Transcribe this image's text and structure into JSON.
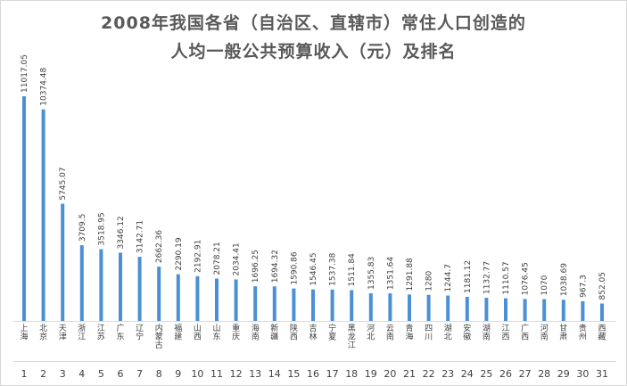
{
  "chart_data": {
    "type": "bar",
    "title_lines": [
      "2008年我国各省（自治区、直辖市）常住人口创造的",
      "人均一般公共预算收入（元）及排名"
    ],
    "categories": [
      "上海",
      "北京",
      "天津",
      "浙江",
      "江苏",
      "广东",
      "辽宁",
      "内蒙古",
      "福建",
      "山西",
      "山东",
      "重庆",
      "海南",
      "新疆",
      "陕西",
      "吉林",
      "宁夏",
      "黑龙江",
      "河北",
      "云南",
      "青海",
      "四川",
      "湖北",
      "安徽",
      "湖南",
      "江西",
      "广西",
      "河南",
      "甘肃",
      "贵州",
      "西藏"
    ],
    "ranks": [
      "1",
      "2",
      "3",
      "4",
      "5",
      "6",
      "7",
      "8",
      "9",
      "10",
      "11",
      "12",
      "13",
      "14",
      "15",
      "16",
      "17",
      "18",
      "19",
      "20",
      "21",
      "22",
      "23",
      "24",
      "25",
      "26",
      "27",
      "28",
      "29",
      "30",
      "31"
    ],
    "values": [
      11017.05,
      10374.48,
      5745.07,
      3709.5,
      3518.95,
      3346.12,
      3142.71,
      2662.36,
      2290.19,
      2192.91,
      2078.21,
      2034.41,
      1696.25,
      1694.32,
      1590.86,
      1546.45,
      1537.38,
      1511.84,
      1355.83,
      1351.64,
      1291.88,
      1280,
      1244.7,
      1181.12,
      1132.77,
      1110.57,
      1076.45,
      1070,
      1038.69,
      967.3,
      852.05
    ],
    "value_labels": [
      "11017.05",
      "10374.48",
      "5745.07",
      "3709.5",
      "3518.95",
      "3346.12",
      "3142.71",
      "2662.36",
      "2290.19",
      "2192.91",
      "2078.21",
      "2034.41",
      "1696.25",
      "1694.32",
      "1590.86",
      "1546.45",
      "1537.38",
      "1511.84",
      "1355.83",
      "1351.64",
      "1291.88",
      "1280",
      "1244.7",
      "1181.12",
      "1132.77",
      "1110.57",
      "1076.45",
      "1070",
      "1038.69",
      "967.3",
      "852.05"
    ],
    "bar_color": "#4a90d4",
    "grid": false,
    "legend": "none",
    "ylim": [
      0,
      11017.05
    ]
  }
}
